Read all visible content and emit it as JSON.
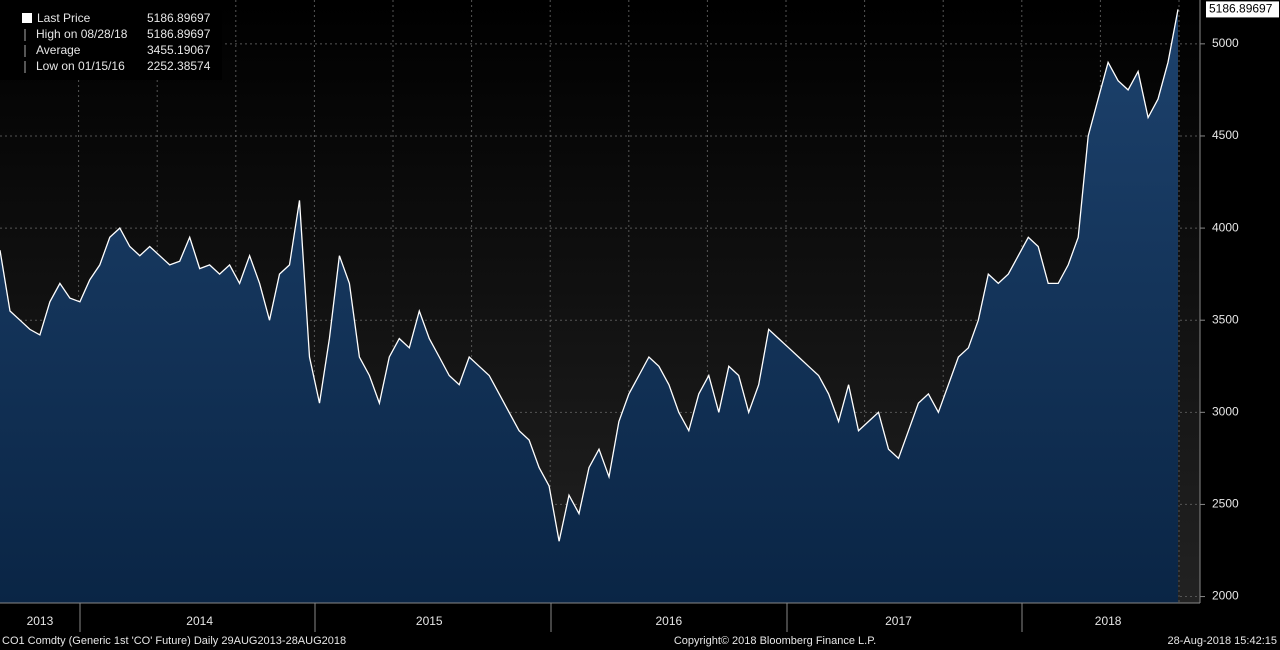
{
  "chart_data": {
    "type": "area",
    "footer_left": "CO1 Comdty (Generic 1st 'CO' Future)  Daily 29AUG2013-28AUG2018",
    "footer_center": "Copyright© 2018 Bloomberg Finance L.P.",
    "footer_right": "28-Aug-2018 15:42:15",
    "legend": [
      {
        "label": "Last Price",
        "value": 5186.89697
      },
      {
        "label": "High on 08/28/18",
        "value": 5186.89697
      },
      {
        "label": "Average",
        "value": 3455.19067
      },
      {
        "label": "Low on 01/15/16",
        "value": 2252.38574
      }
    ],
    "categories": [
      null,
      null,
      null,
      null,
      "2013",
      null,
      null,
      null,
      null,
      null,
      null,
      null,
      null,
      null,
      null,
      null,
      null,
      null,
      null,
      null,
      "2014",
      null,
      null,
      null,
      null,
      null,
      null,
      null,
      null,
      null,
      null,
      null,
      null,
      null,
      null,
      null,
      null,
      null,
      null,
      null,
      null,
      null,
      null,
      "2015",
      null,
      null,
      null,
      null,
      null,
      null,
      null,
      null,
      null,
      null,
      null,
      null,
      null,
      null,
      null,
      null,
      null,
      null,
      null,
      null,
      null,
      null,
      null,
      "2016",
      null,
      null,
      null,
      null,
      null,
      null,
      null,
      null,
      null,
      null,
      null,
      null,
      null,
      null,
      null,
      null,
      null,
      null,
      null,
      null,
      null,
      null,
      "2017",
      null,
      null,
      null,
      null,
      null,
      null,
      null,
      null,
      null,
      null,
      null,
      null,
      null,
      null,
      null,
      null,
      null,
      null,
      null,
      null,
      "2018",
      null,
      null,
      null,
      null,
      null,
      null,
      null
    ],
    "series": [
      {
        "name": "Last Price",
        "color": "#ffffff",
        "values": [
          3880,
          3550,
          3500,
          3450,
          3420,
          3600,
          3700,
          3620,
          3600,
          3720,
          3800,
          3950,
          4000,
          3900,
          3850,
          3900,
          3850,
          3800,
          3820,
          3950,
          3780,
          3800,
          3750,
          3800,
          3700,
          3850,
          3700,
          3500,
          3750,
          3800,
          4150,
          3300,
          3050,
          3400,
          3850,
          3700,
          3300,
          3200,
          3050,
          3300,
          3400,
          3350,
          3550,
          3400,
          3300,
          3200,
          3150,
          3300,
          3250,
          3200,
          3100,
          3000,
          2900,
          2850,
          2700,
          2600,
          2300,
          2550,
          2450,
          2700,
          2800,
          2650,
          2950,
          3100,
          3200,
          3300,
          3250,
          3150,
          3000,
          2900,
          3100,
          3200,
          3000,
          3250,
          3200,
          3000,
          3150,
          3450,
          3400,
          3350,
          3300,
          3250,
          3200,
          3100,
          2950,
          3150,
          2900,
          2950,
          3000,
          2800,
          2750,
          2900,
          3050,
          3100,
          3000,
          3150,
          3300,
          3350,
          3500,
          3750,
          3700,
          3750,
          3850,
          3950,
          3900,
          3700,
          3700,
          3800,
          3950,
          4500,
          4700,
          4900,
          4800,
          4750,
          4850,
          4600,
          4700,
          4900,
          5186.89697
        ]
      }
    ],
    "ylim": [
      1965,
      5238
    ],
    "yticks": [
      2000,
      2500,
      3000,
      3500,
      4000,
      4500,
      5000
    ],
    "grid": true
  }
}
